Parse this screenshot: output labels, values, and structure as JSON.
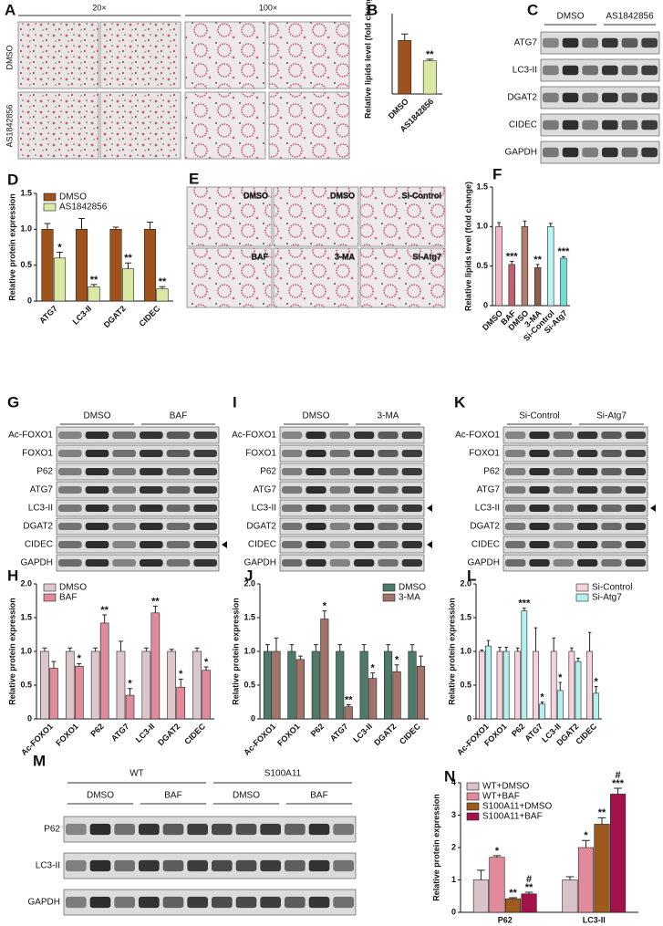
{
  "panel_labels": [
    "A",
    "B",
    "C",
    "D",
    "E",
    "F",
    "G",
    "H",
    "I",
    "J",
    "K",
    "L",
    "M",
    "N"
  ],
  "micrographs": {
    "A": {
      "columns": [
        "20×",
        "100×"
      ],
      "rows": [
        "DMSO",
        "AS1842856"
      ]
    },
    "E": {
      "labels": [
        "DMSO",
        "DMSO",
        "Si-Control",
        "BAF",
        "3-MA",
        "Si-Atg7"
      ]
    }
  },
  "blots": [
    {
      "groups": [
        "DMSO",
        "AS1842856"
      ],
      "rows": [
        "ATG7",
        "LC3-II",
        "DGAT2",
        "CIDEC",
        "GAPDH"
      ]
    },
    {
      "groups": [
        "DMSO",
        "BAF"
      ],
      "rows": [
        "Ac-FOXO1",
        "FOXO1",
        "P62",
        "ATG7",
        "LC3-II",
        "DGAT2",
        "CIDEC",
        "GAPDH"
      ]
    },
    {
      "groups": [
        "DMSO",
        "3-MA"
      ],
      "rows": [
        "Ac-FOXO1",
        "FOXO1",
        "P62",
        "ATG7",
        "LC3-II",
        "DGAT2",
        "CIDEC",
        "GAPDH"
      ]
    },
    {
      "groups": [
        "Si-Control",
        "Si-Atg7"
      ],
      "rows": [
        "Ac-FOXO1",
        "FOXO1",
        "P62",
        "ATG7",
        "LC3-II",
        "DGAT2",
        "CIDEC",
        "GAPDH"
      ]
    },
    {
      "top_groups": [
        "WT",
        "S100A11"
      ],
      "groups": [
        "DMSO",
        "BAF",
        "DMSO",
        "BAF"
      ],
      "rows": [
        "P62",
        "LC3-II",
        "GAPDH"
      ]
    }
  ],
  "chart_data": [
    {
      "type": "bar",
      "ylabel": "Relative lipids level (fold change)",
      "categories": [
        "DMSO",
        "AS1842856"
      ],
      "ylim": [
        0,
        1.5
      ],
      "series": [
        {
          "values": [
            1.0,
            0.62
          ],
          "errors": [
            0.12,
            0.03
          ],
          "colors": [
            "#a0521c",
            "#d9e8a2"
          ],
          "annotations": [
            null,
            "**"
          ]
        }
      ]
    },
    {
      "type": "bar",
      "ylabel": "Relative protein expression",
      "categories": [
        "ATG7",
        "LC3-II",
        "DGAT2",
        "CIDEC"
      ],
      "ylim": [
        0,
        1.5
      ],
      "yticks": [
        0,
        0.5,
        {
          "value": 1,
          "label": "1.0"
        },
        1.5
      ],
      "legend": "upper left",
      "series": [
        {
          "name": "DMSO",
          "color": "#a0521c",
          "values": [
            1,
            1,
            1,
            1
          ],
          "errors": [
            0.08,
            0.15,
            0.03,
            0.1
          ]
        },
        {
          "name": "AS1842856",
          "color": "#d9e8a2",
          "values": [
            0.6,
            0.2,
            0.45,
            0.17
          ],
          "errors": [
            0.08,
            0.03,
            0.08,
            0.03
          ],
          "annotations": [
            "*",
            "**",
            "**",
            "**"
          ]
        }
      ]
    },
    {
      "type": "bar",
      "ylabel": "Relative lipids level (fold change)",
      "categories": [
        "DMSO",
        "BAF",
        "DMSO",
        "3-MA",
        "Si-Control",
        "Si-Atg7"
      ],
      "ylim": [
        0,
        1.5
      ],
      "yticks": [
        0,
        0.5,
        {
          "value": 1,
          "label": "1.0"
        },
        1.5
      ],
      "series": [
        {
          "values": [
            1,
            0.52,
            1,
            0.48,
            1,
            0.6
          ],
          "errors": [
            0.05,
            0.04,
            0.07,
            0.04,
            0.04,
            0.02
          ],
          "colors": [
            "#f2b8c6",
            "#c0616f",
            "#b07d6e",
            "#8d5e50",
            "#b8f5f0",
            "#6fe0d8"
          ],
          "annotations": [
            null,
            "***",
            null,
            "**",
            null,
            "***"
          ]
        }
      ]
    },
    {
      "type": "bar",
      "ylabel": "Relative protein expression",
      "categories": [
        "Ac-FOXO1",
        "FOXO1",
        "P62",
        "ATG7",
        "LC3-II",
        "DGAT2",
        "CIDEC"
      ],
      "ylim": [
        0,
        2
      ],
      "yticks": [
        0,
        0.5,
        {
          "value": 1,
          "label": "1.0"
        },
        1.5,
        {
          "value": 2,
          "label": "2.0"
        }
      ],
      "legend": "upper left",
      "series": [
        {
          "name": "DMSO",
          "color": "#dcc8cc",
          "values": [
            1,
            1,
            1,
            1,
            1,
            1,
            1
          ],
          "errors": [
            0.05,
            0.05,
            0.05,
            0.15,
            0.05,
            0.03,
            0.05
          ]
        },
        {
          "name": "BAF",
          "color": "#e08a9c",
          "values": [
            0.75,
            0.78,
            1.42,
            0.35,
            1.57,
            0.47,
            0.72
          ],
          "errors": [
            0.1,
            0.04,
            0.12,
            0.1,
            0.1,
            0.12,
            0.05
          ],
          "annotations": [
            null,
            "*",
            "**",
            "*",
            "**",
            "*",
            "*"
          ]
        }
      ]
    },
    {
      "type": "bar",
      "ylabel": "Relative protein expression",
      "categories": [
        "Ac-FOXO1",
        "FOXO1",
        "P62",
        "ATG7",
        "LC3-II",
        "DGAT2",
        "CIDEC"
      ],
      "ylim": [
        0,
        2
      ],
      "yticks": [
        0,
        0.5,
        {
          "value": 1,
          "label": "1.0"
        },
        1.5,
        {
          "value": 2,
          "label": "2.0"
        }
      ],
      "legend": "upper right",
      "series": [
        {
          "name": "DMSO",
          "color": "#4e7a6a",
          "values": [
            1,
            1,
            1,
            1,
            1,
            1,
            1
          ],
          "errors": [
            0.1,
            0.1,
            0.1,
            0.1,
            0.1,
            0.1,
            0.1
          ]
        },
        {
          "name": "3-MA",
          "color": "#a3736a",
          "values": [
            1,
            0.88,
            1.48,
            0.18,
            0.6,
            0.7,
            0.78
          ],
          "errors": [
            0.2,
            0.05,
            0.12,
            0.03,
            0.08,
            0.1,
            0.15
          ],
          "annotations": [
            null,
            null,
            "*",
            "**",
            "*",
            "*",
            null
          ]
        }
      ]
    },
    {
      "type": "bar",
      "ylabel": "Relative protein expression",
      "categories": [
        "Ac-FOXO1",
        "FOXO1",
        "P62",
        "ATG7",
        "LC3-II",
        "DGAT2",
        "CIDEC"
      ],
      "ylim": [
        0,
        2
      ],
      "yticks": [
        0,
        0.5,
        {
          "value": 1,
          "label": "1.0"
        },
        1.5,
        {
          "value": 2,
          "label": "2.0"
        }
      ],
      "legend": "upper right",
      "series": [
        {
          "name": "Si-Control",
          "color": "#f6d3dc",
          "values": [
            1,
            1,
            1,
            1,
            1,
            1,
            1
          ],
          "errors": [
            0.02,
            0.06,
            0.05,
            0.35,
            0.2,
            0.05,
            0.28
          ]
        },
        {
          "name": "Si-Atg7",
          "color": "#b4f1ee",
          "values": [
            1.08,
            1,
            1.6,
            0.22,
            0.42,
            0.85,
            0.38
          ],
          "errors": [
            0.08,
            0.06,
            0.04,
            0.03,
            0.12,
            0.05,
            0.1
          ],
          "annotations": [
            null,
            null,
            "***",
            "*",
            "*",
            null,
            "*"
          ]
        }
      ]
    },
    {
      "type": "bar",
      "ylabel": "Relative protein expression",
      "categories": [
        "P62",
        "LC3-II"
      ],
      "ylim": [
        0,
        4
      ],
      "yticks": [
        0,
        1,
        2,
        3,
        4
      ],
      "legend": "upper left",
      "series": [
        {
          "name": "WT+DMSO",
          "color": "#d8c4c8",
          "values": [
            1,
            1
          ],
          "errors": [
            0.3,
            0.1
          ]
        },
        {
          "name": "WT+BAF",
          "color": "#e08a9c",
          "values": [
            1.7,
            2.0
          ],
          "errors": [
            0.05,
            0.22
          ],
          "annotations": [
            "*",
            "*"
          ]
        },
        {
          "name": "S100A11+DMSO",
          "color": "#9c5a1e",
          "values": [
            0.42,
            2.72
          ],
          "errors": [
            0.03,
            0.2
          ],
          "annotations": [
            "**",
            "**"
          ]
        },
        {
          "name": "S100A11+BAF",
          "color": "#a3124a",
          "values": [
            0.57,
            3.65
          ],
          "errors": [
            0.05,
            0.18
          ],
          "annotations": [
            [
              "#",
              "**"
            ],
            [
              "#",
              "***"
            ]
          ]
        }
      ]
    }
  ]
}
